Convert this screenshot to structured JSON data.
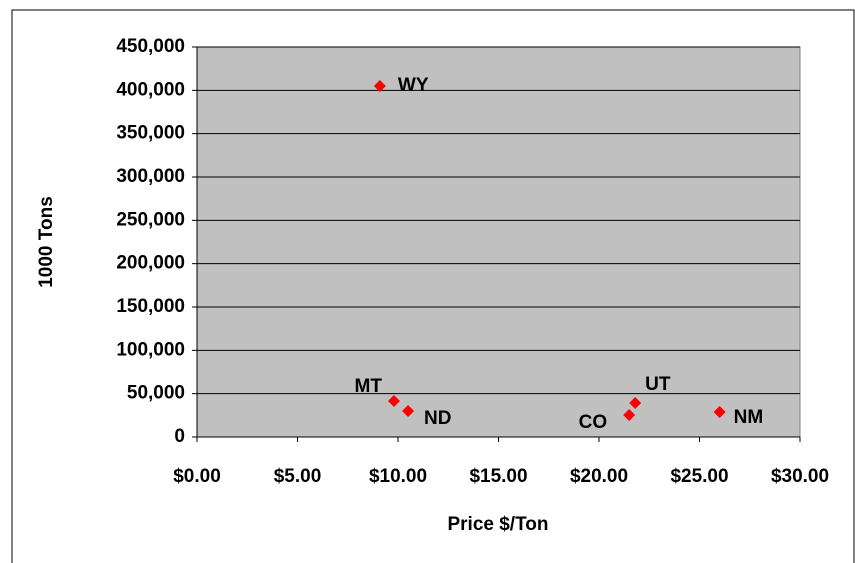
{
  "chart_data": {
    "type": "scatter",
    "x_label": "Price $/Ton",
    "y_label": "1000 Tons",
    "labels": [
      "WY",
      "MT",
      "ND",
      "CO",
      "UT",
      "NM"
    ],
    "x": [
      9.1,
      9.8,
      10.5,
      21.5,
      21.8,
      26.0
    ],
    "values": [
      405000,
      41500,
      30000,
      25400,
      39200,
      28800
    ],
    "color": "#ff0000",
    "xlim": [
      0,
      30
    ],
    "xticks": [
      {
        "value": 0,
        "label": "$0.00"
      },
      {
        "value": 5,
        "label": "$5.00"
      },
      {
        "value": 10,
        "label": "$10.00"
      },
      {
        "value": 15,
        "label": "$15.00"
      },
      {
        "value": 20,
        "label": "$20.00"
      },
      {
        "value": 25,
        "label": "$25.00"
      },
      {
        "value": 30,
        "label": "$30.00"
      }
    ],
    "ylim": [
      0,
      450000
    ],
    "yticks": [
      0,
      {
        "value": 50000,
        "label": "50,000"
      },
      {
        "value": 100000,
        "label": "100,000"
      },
      {
        "value": 150000,
        "label": "150,000"
      },
      {
        "value": 200000,
        "label": "200,000"
      },
      {
        "value": 250000,
        "label": "250,000"
      },
      {
        "value": 300000,
        "label": "300,000"
      },
      {
        "value": 350000,
        "label": "350,000"
      },
      {
        "value": 400000,
        "label": "400,000"
      },
      {
        "value": 450000,
        "label": "450,000"
      }
    ],
    "grid": true,
    "plot_background": "#c0c0c0"
  }
}
